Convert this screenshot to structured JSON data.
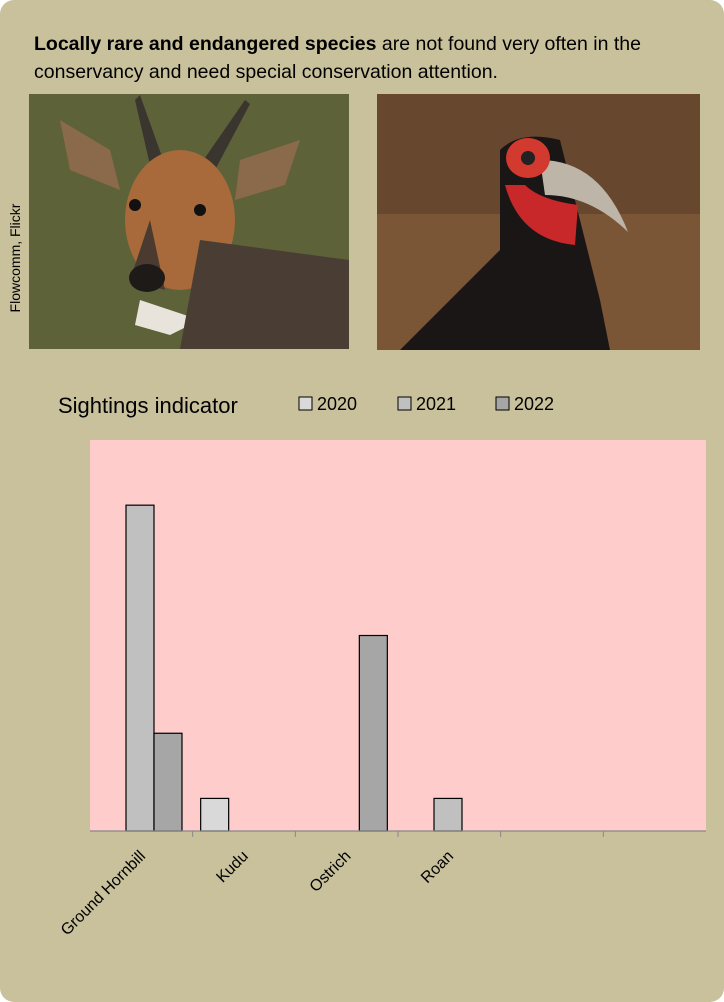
{
  "intro": {
    "bold": "Locally rare and endangered species",
    "rest": "are not found very often in the conservancy and need special conservation attention."
  },
  "credit": "Flowcomm, Flickr",
  "chart_data": {
    "type": "bar",
    "title": "Sightings indicator",
    "categories": [
      "Ground Hornbill",
      "Kudu",
      "Ostrich",
      "Roan",
      null,
      null
    ],
    "series": [
      {
        "name": "2020",
        "color": "#d9d9d9",
        "values": [
          null,
          1,
          null,
          null,
          null,
          null
        ]
      },
      {
        "name": "2021",
        "color": "#c0c0c0",
        "values": [
          10,
          null,
          null,
          1,
          null,
          null
        ]
      },
      {
        "name": "2022",
        "color": "#a6a6a6",
        "values": [
          3,
          null,
          6,
          null,
          null,
          null
        ]
      }
    ],
    "ylim": [
      0,
      12
    ],
    "plot_color": "#ffcccc"
  }
}
